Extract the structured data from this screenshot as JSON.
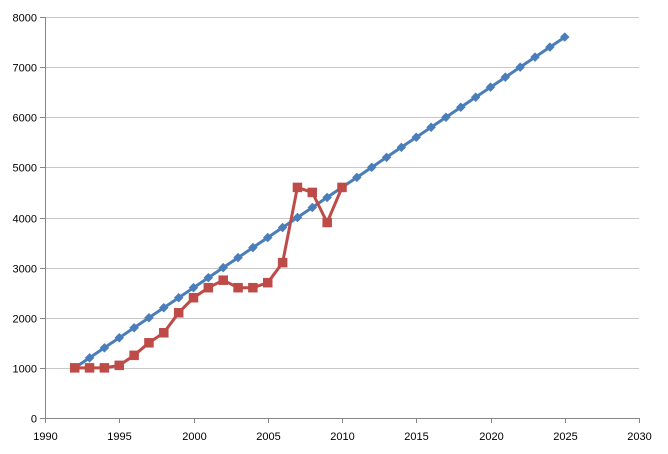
{
  "chart_data": {
    "type": "line",
    "title": "",
    "xlabel": "",
    "ylabel": "",
    "xlim": [
      1990,
      2030
    ],
    "ylim": [
      0,
      8000
    ],
    "xticks": [
      1990,
      1995,
      2000,
      2005,
      2010,
      2015,
      2020,
      2025,
      2030
    ],
    "yticks": [
      0,
      1000,
      2000,
      3000,
      4000,
      5000,
      6000,
      7000,
      8000
    ],
    "grid": {
      "horizontal": true,
      "vertical": false
    },
    "legend": "none",
    "series": [
      {
        "color": "#4a7ebb",
        "marker": "diamond",
        "x": [
          1992,
          1993,
          1994,
          1995,
          1996,
          1997,
          1998,
          1999,
          2000,
          2001,
          2002,
          2003,
          2004,
          2005,
          2006,
          2007,
          2008,
          2009,
          2010,
          2011,
          2012,
          2013,
          2014,
          2015,
          2016,
          2017,
          2018,
          2019,
          2020,
          2021,
          2022,
          2023,
          2024,
          2025
        ],
        "y": [
          1000,
          1200,
          1400,
          1600,
          1800,
          2000,
          2200,
          2400,
          2600,
          2800,
          3000,
          3200,
          3400,
          3600,
          3800,
          4000,
          4200,
          4400,
          4600,
          4800,
          5000,
          5200,
          5400,
          5600,
          5800,
          6000,
          6200,
          6400,
          6600,
          6800,
          7000,
          7200,
          7400,
          7600
        ]
      },
      {
        "color": "#be4b48",
        "marker": "square",
        "x": [
          1992,
          1993,
          1994,
          1995,
          1996,
          1997,
          1998,
          1999,
          2000,
          2001,
          2002,
          2003,
          2004,
          2005,
          2006,
          2007,
          2008,
          2009,
          2010
        ],
        "y": [
          1000,
          1000,
          1000,
          1050,
          1250,
          1500,
          1700,
          2100,
          2400,
          2600,
          2750,
          2600,
          2600,
          2700,
          3100,
          4600,
          4500,
          3900,
          4600
        ]
      }
    ]
  }
}
